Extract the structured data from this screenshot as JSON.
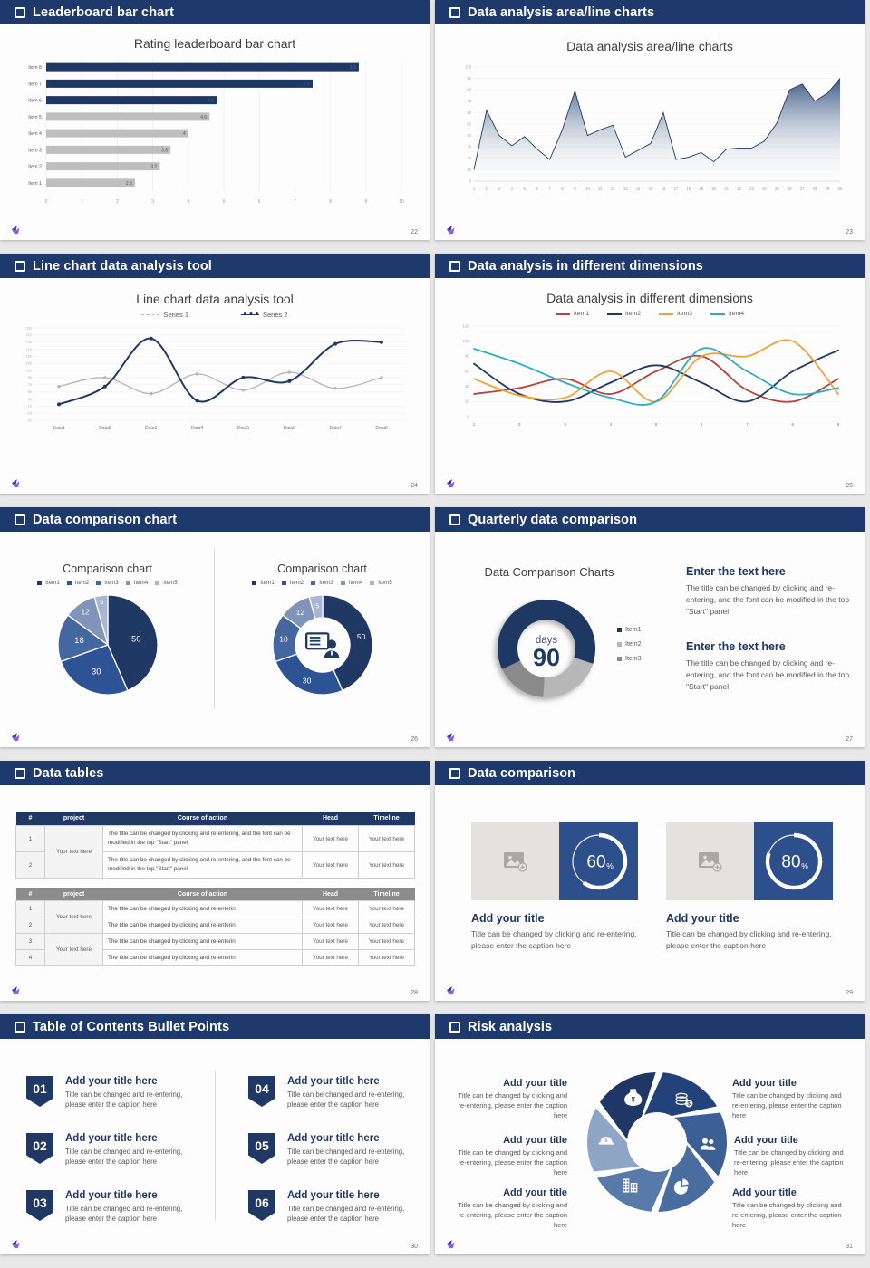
{
  "theme": {
    "header_bg": "#1e3a6c",
    "navy": "#1f3864",
    "medium_blue": "#2e5395",
    "card_blue": "#2d4f8c",
    "bar_gray": "#bfbfbf",
    "page_bg": "#e8e8e8",
    "text_dark": "#404040",
    "text_gray": "#595959"
  },
  "slides": [
    {
      "header": "Leaderboard bar chart",
      "page_number": "22",
      "title": "Rating leaderboard bar chart"
    },
    {
      "header": "Data analysis area/line charts",
      "page_number": "23",
      "title": "Data analysis area/line charts"
    },
    {
      "header": "Line chart data analysis tool",
      "page_number": "24",
      "title": "Line chart data analysis tool",
      "legend": [
        "Series 1",
        "Series 2"
      ]
    },
    {
      "header": "Data analysis in different dimensions",
      "page_number": "25",
      "title": "Data analysis in different dimensions",
      "legend": [
        "Item1",
        "Item2",
        "Item3",
        "Item4"
      ]
    },
    {
      "header": "Data comparison chart",
      "page_number": "26",
      "left_title": "Comparison chart",
      "right_title": "Comparison chart",
      "legend": [
        "Item1",
        "Item2",
        "Item3",
        "Item4",
        "Item5"
      ]
    },
    {
      "header": "Quarterly data comparison",
      "page_number": "27",
      "title": "Data Comparison Charts",
      "legend": [
        "Item1",
        "Item2",
        "Item3"
      ],
      "blocks": [
        {
          "title": "Enter the text here",
          "body": "The title can be changed by clicking and re-entering, and the font can be modified in the top \"Start\" panel"
        },
        {
          "title": "Enter the text here",
          "body": "The title can be changed by clicking and re-entering, and the font can be modified in the top \"Start\" panel"
        }
      ]
    },
    {
      "header": "Data tables",
      "page_number": "28",
      "table1": {
        "headers": [
          "#",
          "project",
          "Course of action",
          "Head",
          "Timeline"
        ],
        "project_text": "Your text here",
        "rows": [
          {
            "num": "1",
            "course": "The title can be changed by clicking and re-entering, and the font can be modified in the top \"Start\" panel",
            "head": "Your text here",
            "timeline": "Your text here"
          },
          {
            "num": "2",
            "course": "The title can be changed by clicking and re-entering, and the font can be modified in the top \"Start\" panel",
            "head": "Your text here",
            "timeline": "Your text here"
          }
        ]
      },
      "table2": {
        "headers": [
          "#",
          "project",
          "Course of action",
          "Head",
          "Timeline"
        ],
        "project_text": "Your text here",
        "rows": [
          {
            "num": "1",
            "course": "The title can be changed by clicking and re-enterin",
            "head": "Your text here",
            "timeline": "Your text here"
          },
          {
            "num": "2",
            "course": "The title can be changed by clicking and re-enterin",
            "head": "Your text here",
            "timeline": "Your text here"
          },
          {
            "num": "3",
            "course": "The title can be changed by clicking and re-enterin",
            "head": "Your text here",
            "timeline": "Your text here"
          },
          {
            "num": "4",
            "course": "The title can be changed by clicking and re-enterin",
            "head": "Your text here",
            "timeline": "Your text here"
          }
        ]
      }
    },
    {
      "header": "Data comparison",
      "page_number": "29",
      "cards": [
        {
          "title": "Add your title",
          "caption": "Title can be changed by clicking and re-entering, please enter the caption here"
        },
        {
          "title": "Add your title",
          "caption": "Title can be changed by clicking and re-entering, please enter the caption here"
        }
      ]
    },
    {
      "header": "Table of Contents Bullet Points",
      "page_number": "30",
      "items": [
        {
          "num": "01",
          "title": "Add your title here",
          "caption": "Title can be changed and re-entering, please enter the caption here"
        },
        {
          "num": "02",
          "title": "Add your title here",
          "caption": "Title can be changed and re-entering, please enter the caption here"
        },
        {
          "num": "03",
          "title": "Add your title here",
          "caption": "Title can be changed and re-entering, please enter the caption here"
        },
        {
          "num": "04",
          "title": "Add your title here",
          "caption": "Title can be changed and re-entering, please enter the caption here"
        },
        {
          "num": "05",
          "title": "Add your title here",
          "caption": "Title can be changed and re-entering, please enter the caption here"
        },
        {
          "num": "06",
          "title": "Add your title here",
          "caption": "Title can be changed and re-entering, please enter the caption here"
        }
      ]
    },
    {
      "header": "Risk analysis",
      "page_number": "31",
      "items": [
        {
          "title": "Add your title",
          "caption": "Title can be changed by clicking and re-entering, please enter the caption here"
        },
        {
          "title": "Add your title",
          "caption": "Title can be changed by clicking and re-entering, please enter the caption here"
        },
        {
          "title": "Add your title",
          "caption": "Title can be changed by clicking and re-entering, please enter the caption here"
        },
        {
          "title": "Add your title",
          "caption": "Title can be changed by clicking and re-entering, please enter the caption here"
        },
        {
          "title": "Add your title",
          "caption": "Title can be changed by clicking and re-entering, please enter the caption here"
        },
        {
          "title": "Add your title",
          "caption": "Title can be changed by clicking and re-entering, please enter the caption here"
        }
      ]
    }
  ],
  "chart_data": [
    {
      "id": "bar-leaderboard",
      "type": "bar",
      "title": "Rating leaderboard bar chart",
      "categories": [
        "Item 8",
        "Item 7",
        "Item 6",
        "Item 5",
        "Item 4",
        "Item 3",
        "Item 2",
        "Item 1"
      ],
      "values": [
        8.8,
        7.5,
        4.8,
        4.6,
        4,
        3.5,
        3.2,
        2.5
      ],
      "colors": [
        "#1f3864",
        "#1f3864",
        "#1f3864",
        "#bfbfbf",
        "#bfbfbf",
        "#bfbfbf",
        "#bfbfbf",
        "#bfbfbf"
      ],
      "xlim": [
        0,
        10
      ],
      "xtick": 1,
      "grid": true
    },
    {
      "id": "area-analysis",
      "type": "area",
      "title": "Data analysis area/line charts",
      "x": [
        1,
        2,
        3,
        4,
        5,
        6,
        7,
        8,
        9,
        10,
        11,
        12,
        13,
        14,
        15,
        16,
        17,
        18,
        19,
        20,
        21,
        22,
        23,
        24,
        25,
        26,
        27,
        28,
        29,
        30
      ],
      "values": [
        10,
        62,
        40,
        31,
        39,
        28,
        19,
        45,
        79,
        40,
        45,
        49,
        21,
        27,
        33,
        60,
        19,
        21,
        25,
        17,
        28,
        29,
        29,
        35,
        51,
        80,
        85,
        70,
        77,
        90
      ],
      "ylim": [
        0,
        100
      ],
      "ytick": 10,
      "line_color": "#1f3864",
      "grid": true
    },
    {
      "id": "line-tool",
      "type": "line",
      "title": "Line chart data analysis tool",
      "categories": [
        "Data1",
        "Data2",
        "Data3",
        "Data4",
        "Data5",
        "Data6",
        "Data7",
        "Data8"
      ],
      "ylim": [
        -30,
        230
      ],
      "ytick": 20,
      "h": 124,
      "ml": 22,
      "inset": 27,
      "x_label_size": 5,
      "y_label_size": 3.8,
      "grid": true,
      "series": [
        {
          "name": "Series 1",
          "color": "#b5b5b5",
          "width": 1.3,
          "markers": true,
          "values": [
            65,
            90,
            45,
            100,
            55,
            105,
            60,
            90
          ]
        },
        {
          "name": "Series 2",
          "color": "#1f3864",
          "width": 2,
          "markers": true,
          "values": [
            15,
            65,
            200,
            25,
            90,
            80,
            185,
            190
          ]
        }
      ]
    },
    {
      "id": "line-dimensions",
      "type": "line",
      "title": "Data analysis in different dimensions",
      "x": [
        1,
        2,
        3,
        4,
        5,
        6,
        7,
        8,
        9
      ],
      "ylim": [
        0,
        120
      ],
      "ytick": 20,
      "h": 122,
      "ml": 24,
      "inset": 2,
      "x_label_size": 4.5,
      "y_label_size": 4.5,
      "grid": true,
      "series": [
        {
          "name": "Item1",
          "color": "#b2453c",
          "width": 1.8,
          "values": [
            30,
            38,
            50,
            30,
            60,
            80,
            35,
            20,
            50
          ]
        },
        {
          "name": "Item2",
          "color": "#1f3864",
          "width": 1.8,
          "values": [
            70,
            30,
            20,
            45,
            68,
            45,
            20,
            60,
            88
          ]
        },
        {
          "name": "Item3",
          "color": "#f0a23c",
          "width": 1.8,
          "values": [
            50,
            28,
            25,
            60,
            20,
            80,
            80,
            100,
            30
          ]
        },
        {
          "name": "Item4",
          "color": "#2faac3",
          "width": 1.8,
          "values": [
            90,
            70,
            45,
            25,
            20,
            90,
            60,
            30,
            38
          ]
        }
      ]
    },
    {
      "id": "pie-comparison",
      "type": "pie",
      "title": "Comparison chart",
      "labels": [
        "Item1",
        "Item2",
        "Item3",
        "Item4",
        "Item5"
      ],
      "values": [
        50,
        30,
        18,
        12,
        5
      ],
      "colors": [
        "#1f3864",
        "#2e5395",
        "#44679f",
        "#8093b8",
        "#a9b6cf"
      ]
    },
    {
      "id": "donut-comparison",
      "type": "donut",
      "title": "Comparison chart",
      "labels": [
        "Item1",
        "Item2",
        "Item3",
        "Item4",
        "Item5"
      ],
      "values": [
        50,
        30,
        18,
        12,
        5
      ],
      "colors": [
        "#1f3864",
        "#2e5395",
        "#44679f",
        "#8093b8",
        "#a9b6cf"
      ],
      "inner_radius": 30,
      "center_icon": "presenter-icon"
    },
    {
      "id": "donut-quarterly",
      "type": "donut",
      "title": "Data Comparison Charts",
      "labels": [
        "Item1",
        "Item2",
        "Item3"
      ],
      "values": [
        62,
        21,
        17
      ],
      "unit": "%",
      "colors": [
        "#1f3864",
        "#b7b7b7",
        "#8a8a8a"
      ],
      "start_angle": 245,
      "inner_radius": 32,
      "shadow": true,
      "center": {
        "label": "days",
        "value": "90"
      }
    },
    {
      "id": "ring-60",
      "type": "ring",
      "percent": 60,
      "unit": "%"
    },
    {
      "id": "ring-80",
      "type": "ring",
      "percent": 80,
      "unit": "%"
    },
    {
      "id": "risk-wheel",
      "type": "pinwheel",
      "angles": [
        332,
        32,
        92,
        152,
        212,
        272
      ],
      "segments": [
        {
          "color": "#1e3765",
          "icon": "money-bag-icon"
        },
        {
          "color": "#24427a",
          "icon": "coins-icon"
        },
        {
          "color": "#3c6096",
          "icon": "people-icon"
        },
        {
          "color": "#4a6da0",
          "icon": "pie-chart-icon"
        },
        {
          "color": "#587aa9",
          "icon": "building-icon"
        },
        {
          "color": "#8fa5c5",
          "icon": "helmet-icon"
        }
      ]
    }
  ]
}
